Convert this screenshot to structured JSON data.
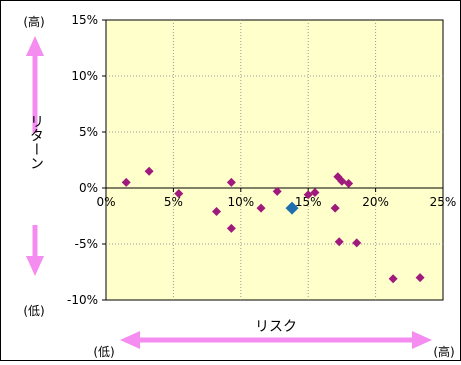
{
  "chart_data": {
    "type": "scatter",
    "title": "",
    "xlabel": "リスク",
    "ylabel": "リターン",
    "xlim": [
      0,
      25
    ],
    "ylim": [
      -10,
      15
    ],
    "x_ticks": [
      0,
      5,
      10,
      15,
      20,
      25
    ],
    "y_ticks": [
      -10,
      -5,
      0,
      5,
      10,
      15
    ],
    "x_tick_labels": [
      "0%",
      "5%",
      "10%",
      "15%",
      "20%",
      "25%"
    ],
    "y_tick_labels": [
      "-10%",
      "-5%",
      "0%",
      "5%",
      "10%",
      "15%"
    ],
    "y_axis_high_label": "(高)",
    "y_axis_low_label": "(低)",
    "x_axis_low_label": "(低)",
    "x_axis_high_label": "(高)",
    "grid": true,
    "series": [
      {
        "points": [
          [
            1.5,
            0.5
          ],
          [
            3.2,
            1.5
          ],
          [
            5.4,
            -0.5
          ],
          [
            8.2,
            -2.1
          ],
          [
            9.3,
            0.5
          ],
          [
            9.3,
            -3.6
          ],
          [
            11.5,
            -1.8
          ],
          [
            12.7,
            -0.3
          ],
          [
            15.0,
            -0.6
          ],
          [
            15.5,
            -0.4
          ],
          [
            17.0,
            -1.8
          ],
          [
            17.2,
            1.0
          ],
          [
            17.5,
            0.6
          ],
          [
            18.0,
            0.4
          ],
          [
            17.3,
            -4.8
          ],
          [
            18.6,
            -4.9
          ],
          [
            21.3,
            -8.1
          ],
          [
            23.3,
            -8.0
          ]
        ],
        "color": "#a0197c"
      },
      {
        "points": [
          [
            13.8,
            -1.8
          ]
        ],
        "color": "#1f6fae",
        "highlight": true
      }
    ],
    "colors": {
      "plot_background": "#ffffcc",
      "arrow": "#f58cf0",
      "grid": "#999999"
    }
  }
}
